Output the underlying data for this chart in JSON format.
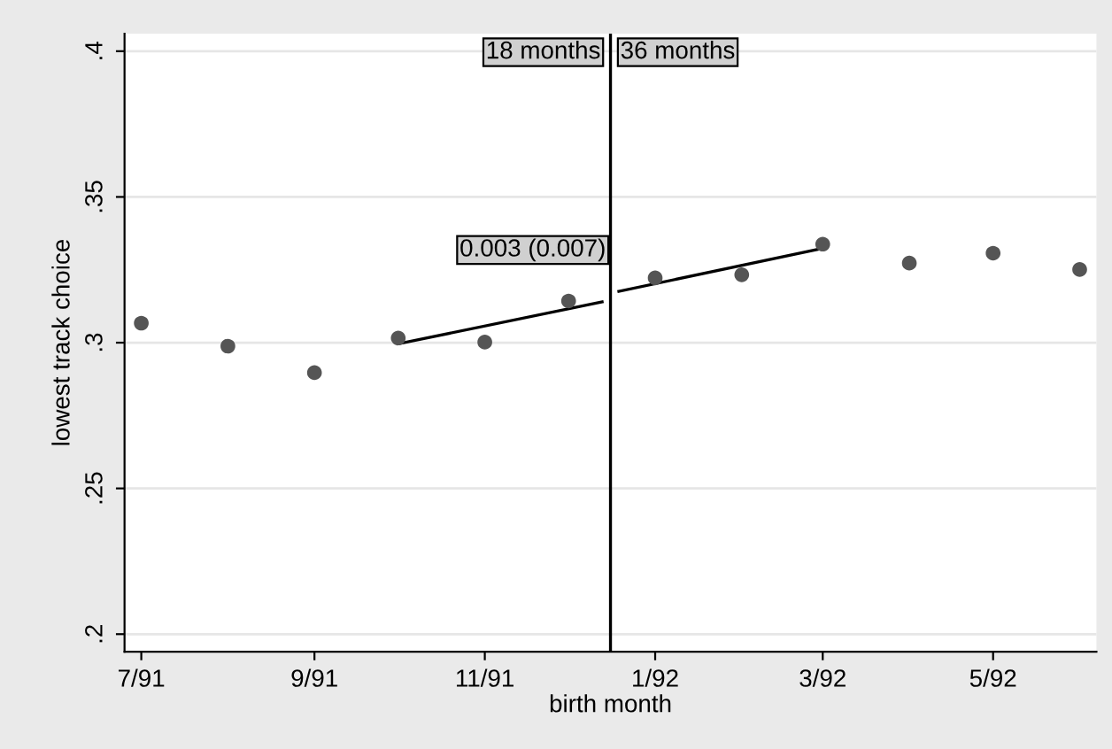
{
  "chart_data": {
    "type": "scatter",
    "xlabel": "birth month",
    "ylabel": "lowest track choice",
    "xlim": [
      "1991-06-25",
      "1992-06-07"
    ],
    "ylim": [
      0.194,
      0.406
    ],
    "xticks": [
      {
        "value": "1991-07",
        "label": "7/91"
      },
      {
        "value": "1991-09",
        "label": "9/91"
      },
      {
        "value": "1991-11",
        "label": "11/91"
      },
      {
        "value": "1992-01",
        "label": "1/92"
      },
      {
        "value": "1992-03",
        "label": "3/92"
      },
      {
        "value": "1992-05",
        "label": "5/92"
      }
    ],
    "yticks": [
      {
        "value": 0.2,
        "label": ".2"
      },
      {
        "value": 0.25,
        "label": ".25"
      },
      {
        "value": 0.3,
        "label": ".3"
      },
      {
        "value": 0.35,
        "label": ".35"
      },
      {
        "value": 0.4,
        "label": ".4"
      }
    ],
    "grid": "y",
    "legend": false,
    "marker": "circle",
    "series": [
      {
        "color": "#555555",
        "x": [
          "1991-07",
          "1991-08",
          "1991-09",
          "1991-10",
          "1991-11",
          "1991-12",
          "1992-01",
          "1992-02",
          "1992-03",
          "1992-04",
          "1992-05",
          "1992-06"
        ],
        "values": [
          0.3067,
          0.2988,
          0.2897,
          0.3016,
          0.3002,
          0.3143,
          0.3222,
          0.3233,
          0.3338,
          0.3273,
          0.3307,
          0.3251
        ]
      },
      {
        "type": "line",
        "color": "#000000",
        "marker": "none",
        "x": [
          "1991-10",
          "1991-12-13"
        ],
        "values": [
          0.2996,
          0.314
        ]
      },
      {
        "type": "line",
        "color": "#000000",
        "marker": "none",
        "x": [
          "1991-12-19",
          "1992-03"
        ],
        "values": [
          0.3176,
          0.3324
        ]
      }
    ],
    "ref_lines": [
      {
        "axis": "x",
        "value": "1991-12-16",
        "color": "#000000"
      }
    ],
    "annotations": [
      "18 months",
      "36 months",
      "0.003 (0.007)"
    ]
  }
}
